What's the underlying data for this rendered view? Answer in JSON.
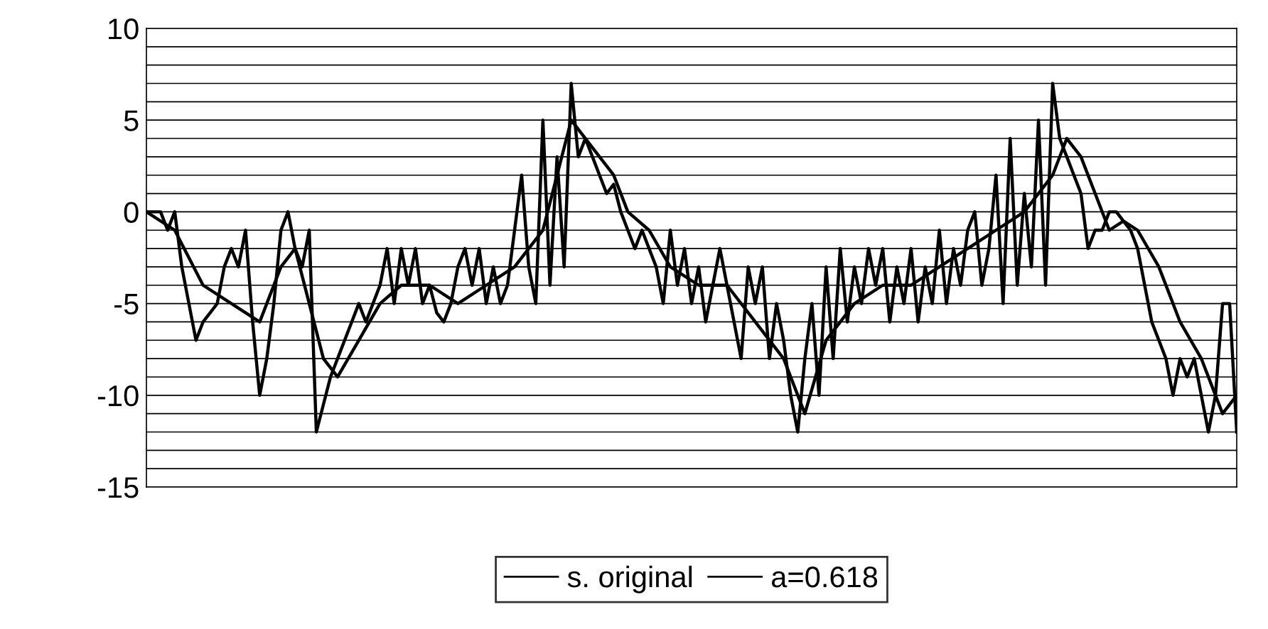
{
  "chart_data": {
    "type": "line",
    "categories": [
      null,
      null,
      null,
      null,
      null,
      null,
      null,
      null,
      null,
      null,
      null,
      null,
      null,
      null,
      null,
      null,
      null,
      null,
      null,
      null,
      null,
      null,
      null,
      null,
      null,
      null,
      null,
      null,
      null,
      null,
      null,
      null,
      null,
      null,
      null,
      null,
      null,
      null,
      null,
      null,
      null,
      null,
      null,
      null,
      null,
      null,
      null,
      null,
      null,
      null,
      null,
      null,
      null,
      null,
      null,
      null,
      null,
      null,
      null,
      null,
      null,
      null,
      null,
      null,
      null,
      null,
      null,
      null,
      null,
      null,
      null,
      null,
      null,
      null,
      null,
      null,
      null,
      null,
      null,
      null,
      null,
      null,
      null,
      null,
      null,
      null,
      null,
      null,
      null,
      null,
      null,
      null,
      null,
      null,
      null,
      null,
      null,
      null,
      null,
      null,
      null,
      null,
      null,
      null,
      null,
      null,
      null,
      null,
      null,
      null,
      null,
      null,
      null,
      null,
      null,
      null,
      null,
      null,
      null,
      null,
      null,
      null,
      null,
      null,
      null,
      null,
      null,
      null,
      null,
      null,
      null,
      null,
      null,
      null,
      null,
      null,
      null,
      null,
      null,
      null,
      null,
      null,
      null,
      null,
      null,
      null,
      null,
      null,
      null,
      null,
      null,
      null,
      null,
      null,
      null
    ],
    "ylim": [
      -15,
      10
    ],
    "yticks": [
      -15,
      -10,
      -5,
      0,
      5,
      10
    ],
    "grid": "y",
    "legend": "bottom",
    "marker": "none",
    "line_style": "solid",
    "ref_lines": [
      {
        "axis": "y",
        "value": -14
      },
      {
        "axis": "y",
        "value": -13
      },
      {
        "axis": "y",
        "value": -12
      },
      {
        "axis": "y",
        "value": -11
      },
      {
        "axis": "y",
        "value": -9
      },
      {
        "axis": "y",
        "value": -8
      },
      {
        "axis": "y",
        "value": -7
      },
      {
        "axis": "y",
        "value": -6
      },
      {
        "axis": "y",
        "value": -4
      },
      {
        "axis": "y",
        "value": -3
      },
      {
        "axis": "y",
        "value": -2
      },
      {
        "axis": "y",
        "value": -1
      },
      {
        "axis": "y",
        "value": 1
      },
      {
        "axis": "y",
        "value": 2
      },
      {
        "axis": "y",
        "value": 3
      },
      {
        "axis": "y",
        "value": 4
      },
      {
        "axis": "y",
        "value": 6
      },
      {
        "axis": "y",
        "value": 7
      },
      {
        "axis": "y",
        "value": 8
      },
      {
        "axis": "y",
        "value": 9
      }
    ],
    "series": [
      {
        "name": "s. original",
        "color": "#000000",
        "values": [
          0,
          0,
          0,
          -1,
          0,
          -3,
          -5,
          -7,
          -6,
          -5.5,
          -5,
          -3,
          -2,
          -3,
          -1,
          -6,
          -10,
          -8,
          -5,
          -1,
          0,
          -2,
          -3,
          -1,
          -12,
          -10.5,
          -9,
          -8,
          -7,
          -6,
          -5,
          -6,
          -5,
          -4,
          -2,
          -5,
          -2,
          -4,
          -2,
          -5,
          -4,
          -5.5,
          -6,
          -5,
          -3,
          -2,
          -4,
          -2,
          -5,
          -3,
          -5,
          -4,
          -1,
          2,
          -3,
          -5,
          5,
          -4,
          3,
          -3,
          7,
          3,
          4,
          3,
          2,
          1,
          1.5,
          0,
          -1,
          -2,
          -1,
          -2,
          -3,
          -5,
          -1,
          -4,
          -2,
          -5,
          -3,
          -6,
          -4,
          -2,
          -4,
          -6,
          -8,
          -3,
          -5,
          -3,
          -8,
          -5,
          -7,
          -10,
          -12,
          -8,
          -5,
          -10,
          -3,
          -8,
          -2,
          -6,
          -3,
          -5,
          -2,
          -4,
          -2,
          -6,
          -3,
          -5,
          -2,
          -6,
          -3,
          -5,
          -1,
          -5,
          -2,
          -4,
          -1,
          0,
          -4,
          -2,
          2,
          -5,
          4,
          -4,
          1,
          -3,
          5,
          -4,
          7,
          4,
          3,
          2,
          1,
          -2,
          -1,
          -1,
          0,
          0,
          -0.5,
          -1,
          -2,
          -4,
          -6,
          -7,
          -8,
          -10,
          -8,
          -9,
          -8,
          -10,
          -12,
          -10,
          -5,
          -5,
          -12
        ]
      },
      {
        "name": "a=0.618",
        "color": "#000000",
        "values": [
          0,
          null,
          null,
          null,
          -1,
          null,
          null,
          null,
          -4,
          null,
          null,
          null,
          -5,
          null,
          null,
          null,
          -6,
          null,
          null,
          -3,
          null,
          -2,
          null,
          -5,
          null,
          -8,
          null,
          -9,
          null,
          null,
          -7,
          null,
          null,
          -5,
          null,
          null,
          -4,
          null,
          null,
          null,
          -4,
          null,
          null,
          null,
          -5,
          null,
          null,
          null,
          -4,
          null,
          null,
          null,
          -3,
          null,
          null,
          null,
          -1,
          null,
          null,
          null,
          5,
          null,
          4,
          null,
          3,
          null,
          2,
          null,
          0,
          null,
          null,
          -1,
          null,
          null,
          -3,
          null,
          null,
          null,
          -4,
          null,
          null,
          null,
          -4,
          null,
          null,
          null,
          -6,
          null,
          null,
          null,
          -8,
          null,
          null,
          -11,
          null,
          null,
          -7,
          null,
          null,
          null,
          -5,
          null,
          null,
          null,
          -4,
          null,
          null,
          null,
          -4,
          null,
          null,
          null,
          -3,
          null,
          null,
          null,
          -2,
          null,
          null,
          null,
          -1,
          null,
          null,
          null,
          0,
          null,
          null,
          null,
          2,
          null,
          4,
          null,
          3,
          null,
          1,
          null,
          -1,
          null,
          -0.5,
          null,
          -1,
          null,
          null,
          -3,
          null,
          null,
          -6,
          null,
          null,
          -8,
          null,
          null,
          -11,
          null,
          -10
        ]
      }
    ]
  }
}
